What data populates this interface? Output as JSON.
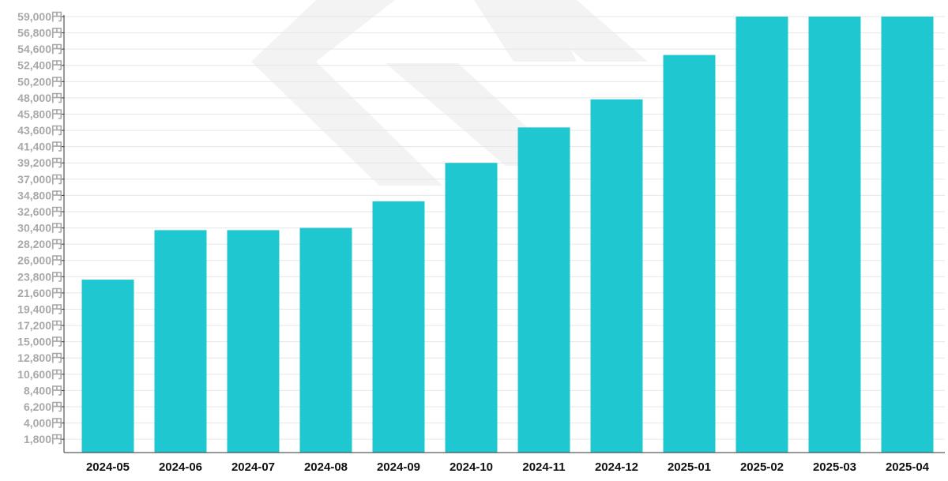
{
  "chart_data": {
    "type": "bar",
    "title": "",
    "xlabel": "",
    "ylabel": "",
    "categories": [
      "2024-05",
      "2024-06",
      "2024-07",
      "2024-08",
      "2024-09",
      "2024-10",
      "2024-11",
      "2024-12",
      "2025-01",
      "2025-02",
      "2025-03",
      "2025-04"
    ],
    "values": [
      23400,
      30100,
      30100,
      30400,
      34000,
      39200,
      44000,
      47800,
      53800,
      59000,
      59000,
      59000
    ],
    "ylim": [
      0,
      59000
    ],
    "yticks": [
      1800,
      4000,
      6200,
      8400,
      10600,
      12800,
      15000,
      17200,
      19400,
      21600,
      23800,
      26000,
      28200,
      30400,
      32600,
      34800,
      37000,
      39200,
      41400,
      43600,
      45800,
      48000,
      50200,
      52400,
      54600,
      56800,
      59000
    ],
    "ytick_labels": [
      "1,800円",
      "4,000円",
      "6,200円",
      "8,400円",
      "10,600円",
      "12,800円",
      "15,000円",
      "17,200円",
      "19,400円",
      "21,600円",
      "23,800円",
      "26,000円",
      "28,200円",
      "30,400円",
      "32,600円",
      "34,800円",
      "37,000円",
      "39,200円",
      "41,400円",
      "43,600円",
      "45,800円",
      "48,000円",
      "50,200円",
      "52,400円",
      "54,600円",
      "56,800円",
      "59,000円"
    ],
    "grid": true,
    "legend": "none",
    "colors": {
      "bar": "#1fc8d1",
      "grid": "#e6e6e6",
      "axis": "#333333",
      "ytick_text": "#a8a8a8",
      "xtick_text": "#111111",
      "watermark": "#f3f3f3"
    }
  }
}
